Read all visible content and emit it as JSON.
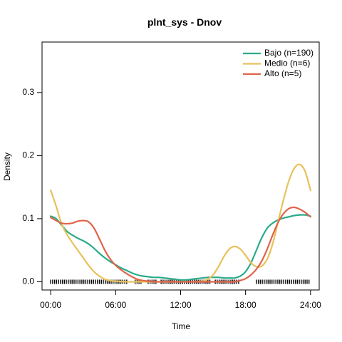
{
  "chart_data": {
    "type": "line",
    "title": "plnt_sys - Dnov",
    "xlabel": "Time",
    "ylabel": "Density",
    "xlim": [
      -0.8,
      24.8
    ],
    "ylim": [
      -0.013,
      0.38
    ],
    "x_ticks": [
      {
        "value": 0,
        "label": "00:00"
      },
      {
        "value": 6,
        "label": "06:00"
      },
      {
        "value": 12,
        "label": "12:00"
      },
      {
        "value": 18,
        "label": "18:00"
      },
      {
        "value": 24,
        "label": "24:00"
      }
    ],
    "y_ticks": [
      {
        "value": 0.0,
        "label": "0.0"
      },
      {
        "value": 0.1,
        "label": "0.1"
      },
      {
        "value": 0.2,
        "label": "0.2"
      },
      {
        "value": 0.3,
        "label": "0.3"
      }
    ],
    "legend_position": "top-right",
    "series": [
      {
        "name": "Bajo (n=190)",
        "color": "#2aaa8a",
        "points": [
          [
            0,
            0.104
          ],
          [
            0.5,
            0.1
          ],
          [
            1,
            0.09
          ],
          [
            1.5,
            0.08
          ],
          [
            2,
            0.074
          ],
          [
            2.5,
            0.069
          ],
          [
            3,
            0.065
          ],
          [
            3.5,
            0.06
          ],
          [
            4,
            0.053
          ],
          [
            4.5,
            0.045
          ],
          [
            5,
            0.038
          ],
          [
            5.5,
            0.032
          ],
          [
            6,
            0.027
          ],
          [
            6.5,
            0.022
          ],
          [
            7,
            0.018
          ],
          [
            7.5,
            0.014
          ],
          [
            8,
            0.011
          ],
          [
            8.5,
            0.009
          ],
          [
            9,
            0.008
          ],
          [
            9.5,
            0.007
          ],
          [
            10,
            0.007
          ],
          [
            10.5,
            0.006
          ],
          [
            11,
            0.005
          ],
          [
            11.5,
            0.004
          ],
          [
            12,
            0.003
          ],
          [
            12.5,
            0.003
          ],
          [
            13,
            0.004
          ],
          [
            13.5,
            0.005
          ],
          [
            14,
            0.006
          ],
          [
            14.5,
            0.007
          ],
          [
            15,
            0.007
          ],
          [
            15.5,
            0.007
          ],
          [
            16,
            0.006
          ],
          [
            16.5,
            0.006
          ],
          [
            17,
            0.006
          ],
          [
            17.5,
            0.009
          ],
          [
            18,
            0.016
          ],
          [
            18.5,
            0.03
          ],
          [
            19,
            0.05
          ],
          [
            19.5,
            0.07
          ],
          [
            20,
            0.085
          ],
          [
            20.5,
            0.093
          ],
          [
            21,
            0.098
          ],
          [
            21.5,
            0.101
          ],
          [
            22,
            0.103
          ],
          [
            22.5,
            0.105
          ],
          [
            23,
            0.106
          ],
          [
            23.5,
            0.106
          ],
          [
            24,
            0.104
          ]
        ]
      },
      {
        "name": "Medio (n=6)",
        "color": "#e8c15a",
        "points": [
          [
            0,
            0.145
          ],
          [
            0.5,
            0.12
          ],
          [
            1,
            0.092
          ],
          [
            1.5,
            0.075
          ],
          [
            2,
            0.062
          ],
          [
            2.5,
            0.05
          ],
          [
            3,
            0.038
          ],
          [
            3.5,
            0.026
          ],
          [
            4,
            0.016
          ],
          [
            4.5,
            0.009
          ],
          [
            5,
            0.004
          ],
          [
            5.5,
            0.002
          ],
          [
            6,
            0.001
          ],
          [
            7,
            0.0
          ],
          [
            8,
            0.0
          ],
          [
            9,
            0.0
          ],
          [
            10,
            0.0
          ],
          [
            11,
            0.0
          ],
          [
            12,
            0.0
          ],
          [
            13,
            0.0
          ],
          [
            14,
            0.001
          ],
          [
            14.5,
            0.004
          ],
          [
            15,
            0.011
          ],
          [
            15.5,
            0.024
          ],
          [
            16,
            0.04
          ],
          [
            16.5,
            0.052
          ],
          [
            17,
            0.056
          ],
          [
            17.5,
            0.052
          ],
          [
            18,
            0.042
          ],
          [
            18.5,
            0.03
          ],
          [
            19,
            0.024
          ],
          [
            19.5,
            0.025
          ],
          [
            20,
            0.036
          ],
          [
            20.5,
            0.06
          ],
          [
            21,
            0.095
          ],
          [
            21.5,
            0.13
          ],
          [
            22,
            0.16
          ],
          [
            22.5,
            0.18
          ],
          [
            23,
            0.186
          ],
          [
            23.5,
            0.175
          ],
          [
            24,
            0.145
          ]
        ]
      },
      {
        "name": "Alto (n=5)",
        "color": "#e0644a",
        "points": [
          [
            0,
            0.102
          ],
          [
            0.5,
            0.097
          ],
          [
            1,
            0.093
          ],
          [
            1.5,
            0.092
          ],
          [
            2,
            0.093
          ],
          [
            2.5,
            0.096
          ],
          [
            3,
            0.097
          ],
          [
            3.5,
            0.095
          ],
          [
            4,
            0.085
          ],
          [
            4.5,
            0.068
          ],
          [
            5,
            0.05
          ],
          [
            5.5,
            0.036
          ],
          [
            6,
            0.026
          ],
          [
            6.5,
            0.019
          ],
          [
            7,
            0.013
          ],
          [
            7.5,
            0.008
          ],
          [
            8,
            0.004
          ],
          [
            8.5,
            0.002
          ],
          [
            9,
            0.001
          ],
          [
            10,
            0.0
          ],
          [
            11,
            0.0
          ],
          [
            12,
            0.0
          ],
          [
            13,
            0.0
          ],
          [
            14,
            0.0
          ],
          [
            15,
            0.0
          ],
          [
            16,
            0.0
          ],
          [
            17,
            0.0
          ],
          [
            17.5,
            0.002
          ],
          [
            18,
            0.005
          ],
          [
            18.5,
            0.011
          ],
          [
            19,
            0.02
          ],
          [
            19.5,
            0.033
          ],
          [
            20,
            0.052
          ],
          [
            20.5,
            0.074
          ],
          [
            21,
            0.094
          ],
          [
            21.5,
            0.108
          ],
          [
            22,
            0.116
          ],
          [
            22.5,
            0.118
          ],
          [
            23,
            0.115
          ],
          [
            23.5,
            0.11
          ],
          [
            24,
            0.103
          ]
        ]
      }
    ],
    "rug_ranges": [
      [
        0,
        7.1
      ],
      [
        7.8,
        8.4
      ],
      [
        9.0,
        9.8
      ],
      [
        10.2,
        14.8
      ],
      [
        15.2,
        17.4
      ],
      [
        19.0,
        24.0
      ]
    ]
  }
}
